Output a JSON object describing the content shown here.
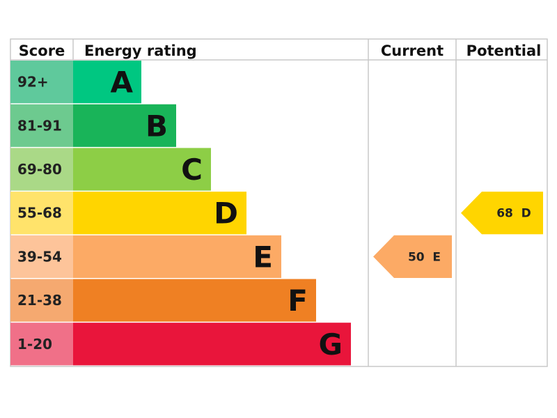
{
  "chart_data": {
    "type": "bar",
    "title": "",
    "headers": {
      "score": "Score",
      "energy_rating": "Energy rating",
      "current": "Current",
      "potential": "Potential"
    },
    "bands": [
      {
        "score": "92+",
        "letter": "A",
        "color": "#00c781",
        "score_bg": "#5fc99c"
      },
      {
        "score": "81-91",
        "letter": "B",
        "color": "#19b459",
        "score_bg": "#6dca8f"
      },
      {
        "score": "69-80",
        "letter": "C",
        "color": "#8dce46",
        "score_bg": "#aad987"
      },
      {
        "score": "55-68",
        "letter": "D",
        "color": "#ffd500",
        "score_bg": "#ffe36b"
      },
      {
        "score": "39-54",
        "letter": "E",
        "color": "#fcaa65",
        "score_bg": "#fdc49a"
      },
      {
        "score": "21-38",
        "letter": "F",
        "color": "#ef8023",
        "score_bg": "#f5a970"
      },
      {
        "score": "1-20",
        "letter": "G",
        "color": "#e9153b",
        "score_bg": "#f07088"
      }
    ],
    "current": {
      "value": 50,
      "letter": "E",
      "label": "50  E",
      "color": "#fcaa65"
    },
    "potential": {
      "value": 68,
      "letter": "D",
      "label": "68  D",
      "color": "#ffd500"
    }
  }
}
